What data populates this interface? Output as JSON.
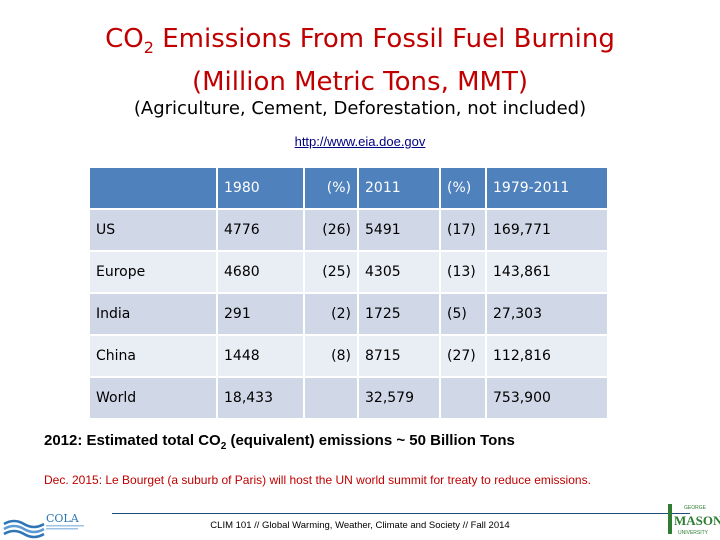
{
  "title": {
    "line1_prefix": "CO",
    "line1_sub": "2",
    "line1_suffix": " Emissions From Fossil Fuel Burning",
    "line2": "(Million Metric Tons, MMT)"
  },
  "subtitle": "(Agriculture, Cement, Deforestation, not included)",
  "source_link": "http://www.eia.doe.gov",
  "table": {
    "headers": [
      "",
      "1980",
      "(%)",
      "2011",
      "(%)",
      "1979-2011"
    ],
    "rows": [
      [
        "US",
        "4776",
        "(26)",
        "5491",
        "(17)",
        "169,771"
      ],
      [
        "Europe",
        "4680",
        "(25)",
        "4305",
        "(13)",
        "143,861"
      ],
      [
        "India",
        "291",
        "(2)",
        "1725",
        "(5)",
        "27,303"
      ],
      [
        "China",
        "1448",
        "(8)",
        "8715",
        "(27)",
        "112,816"
      ],
      [
        "World",
        "18,433",
        "",
        "32,579",
        "",
        "753,900"
      ]
    ]
  },
  "note_estimate": {
    "prefix": "2012: Estimated total CO",
    "sub": "2",
    "suffix": " (equivalent) emissions ~ 50 Billion Tons"
  },
  "note_event": "Dec. 2015: Le Bourget (a suburb of Paris) will host the UN world summit for treaty to reduce emissions.",
  "footer": "CLIM 101 // Global Warming, Weather, Climate and Society // Fall 2014",
  "logos": {
    "left": "COLA",
    "right_top": "GEORGE",
    "right_main": "MASON",
    "right_bottom": "UNIVERSITY"
  },
  "colors": {
    "title": "#c00000",
    "header_row": "#4f81bd",
    "row_odd": "#d0d8e8",
    "row_even": "#e9edf4"
  }
}
